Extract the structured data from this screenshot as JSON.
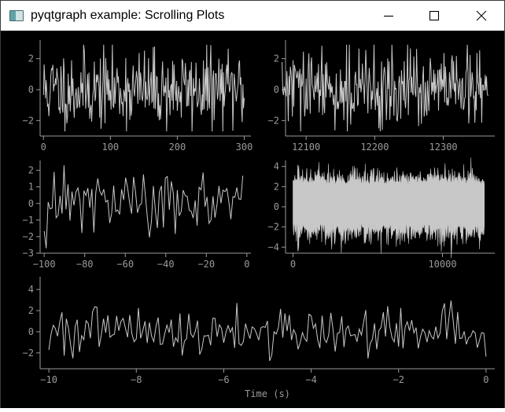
{
  "window": {
    "title": "pyqtgraph example: Scrolling Plots",
    "minimize_icon": "minimize-icon",
    "maximize_icon": "maximize-icon",
    "close_icon": "close-icon"
  },
  "colors": {
    "background": "#000000",
    "axis": "#9a9a9a",
    "curve": "#c8c8c8",
    "titlebar": "#ffffff"
  },
  "chart_data": [
    {
      "type": "line",
      "name": "plot1",
      "xlim": [
        -5,
        310
      ],
      "ylim": [
        -3,
        3.2
      ],
      "xticks": [
        0,
        100,
        200,
        300
      ],
      "xtick_labels": [
        "0",
        "100",
        "200",
        "300"
      ],
      "yticks": [
        2,
        0,
        -2
      ],
      "ytick_labels": [
        "2",
        "0",
        "−2"
      ],
      "xlabel": "",
      "ylabel": "",
      "series": [
        {
          "x_start": 0,
          "x_end": 300,
          "count": 300,
          "amplitude": 2.3,
          "seed": 11
        }
      ]
    },
    {
      "type": "line",
      "name": "plot2",
      "xlim": [
        12070,
        12375
      ],
      "ylim": [
        -3,
        3.2
      ],
      "xticks": [
        12100,
        12200,
        12300
      ],
      "xtick_labels": [
        "12100",
        "12200",
        "12300"
      ],
      "yticks": [
        2,
        0,
        -2
      ],
      "ytick_labels": [
        "2",
        "0",
        "−2"
      ],
      "xlabel": "",
      "ylabel": "",
      "series": [
        {
          "x_start": 12065,
          "x_end": 12365,
          "count": 300,
          "amplitude": 2.3,
          "seed": 29
        }
      ]
    },
    {
      "type": "line",
      "name": "plot3",
      "xlim": [
        -102,
        2
      ],
      "ylim": [
        -3,
        2.6
      ],
      "xticks": [
        -100,
        -80,
        -60,
        -40,
        -20,
        0
      ],
      "xtick_labels": [
        "−100",
        "−80",
        "−60",
        "−40",
        "−20",
        "0"
      ],
      "yticks": [
        2,
        1,
        0,
        -1,
        -2,
        -3
      ],
      "ytick_labels": [
        "2",
        "1",
        "0",
        "−1",
        "−2",
        "−3"
      ],
      "xlabel": "",
      "ylabel": "",
      "series": [
        {
          "x_start": -100,
          "x_end": -2,
          "count": 100,
          "amplitude": 1.9,
          "seed": 47
        }
      ]
    },
    {
      "type": "area",
      "name": "plot4",
      "xlim": [
        -500,
        13500
      ],
      "ylim": [
        -4.6,
        4.6
      ],
      "xticks": [
        0,
        10000
      ],
      "xtick_labels": [
        "0",
        "10000"
      ],
      "yticks": [
        4,
        2,
        0,
        -2,
        -4
      ],
      "ytick_labels": [
        "4",
        "2",
        "0",
        "−2",
        "−4"
      ],
      "xlabel": "",
      "ylabel": "",
      "series": [
        {
          "x_start": 0,
          "x_end": 12800,
          "count": 400,
          "amplitude": 3.6,
          "seed": 83
        }
      ]
    },
    {
      "type": "line",
      "name": "plot5",
      "xlim": [
        -10.2,
        0.2
      ],
      "ylim": [
        -3.5,
        5.2
      ],
      "xticks": [
        -10,
        -8,
        -6,
        -4,
        -2,
        0
      ],
      "xtick_labels": [
        "−10",
        "−8",
        "−6",
        "−4",
        "−2",
        "0"
      ],
      "yticks": [
        4,
        2,
        0,
        -2
      ],
      "ytick_labels": [
        "4",
        "2",
        "0",
        "−2"
      ],
      "xlabel": "Time (s)",
      "ylabel": "",
      "series": [
        {
          "x_start": -10.0,
          "x_end": 0,
          "count": 200,
          "amplitude": 2.1,
          "seed": 101
        }
      ]
    }
  ]
}
